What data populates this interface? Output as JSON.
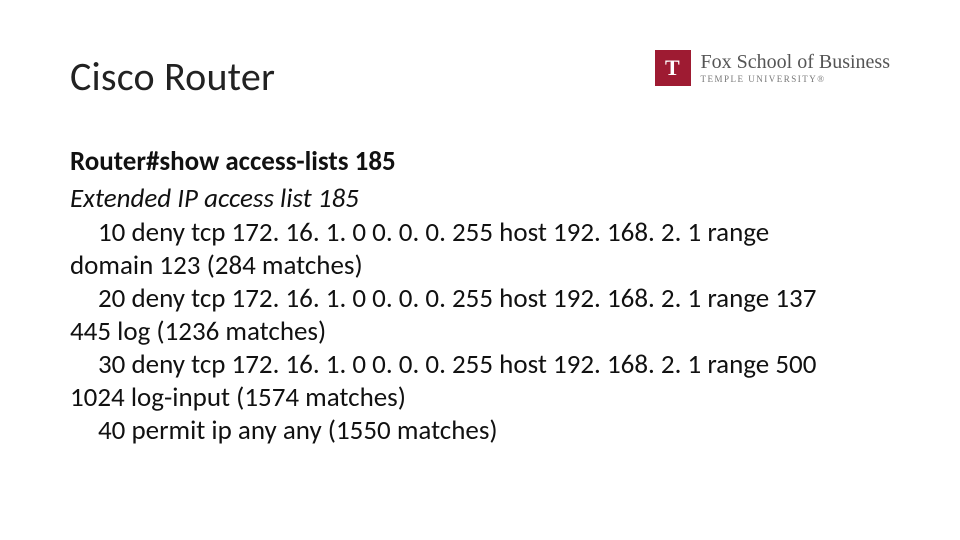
{
  "title": "Cisco Router",
  "logo": {
    "mark_letter": "T",
    "main_text": "Fox School of Business",
    "sub_text": "TEMPLE UNIVERSITY®",
    "mark_bg": "#9e1b32",
    "mark_fg": "#ffffff",
    "text_color": "#555555"
  },
  "command": {
    "prompt": "Router#show access-lists 185"
  },
  "acl": {
    "header": "Extended IP access list 185",
    "entries": [
      {
        "indent_text": "10 deny tcp 172. 16. 1. 0 0. 0. 0. 255 host 192. 168. 2. 1 range",
        "wrap_text": "domain 123 (284 matches)"
      },
      {
        "indent_text": "20 deny tcp 172. 16. 1. 0 0. 0. 0. 255 host 192. 168. 2. 1 range 137",
        "wrap_text": "445 log (1236 matches)"
      },
      {
        "indent_text": "30 deny tcp 172. 16. 1. 0 0. 0. 0. 255 host 192. 168. 2. 1 range 500",
        "wrap_text": "1024 log-input (1574 matches)"
      },
      {
        "indent_text": "40 permit ip any any (1550 matches)",
        "wrap_text": ""
      }
    ]
  },
  "styling": {
    "slide_bg": "#ffffff",
    "title_fontsize": 40,
    "body_fontsize": 27,
    "title_color": "#222222",
    "body_color": "#111111",
    "font_family": "Calibri, Segoe UI, Arial, sans-serif",
    "logo_font_family": "Georgia, Times New Roman, serif",
    "slide_width": 960,
    "slide_height": 540
  }
}
